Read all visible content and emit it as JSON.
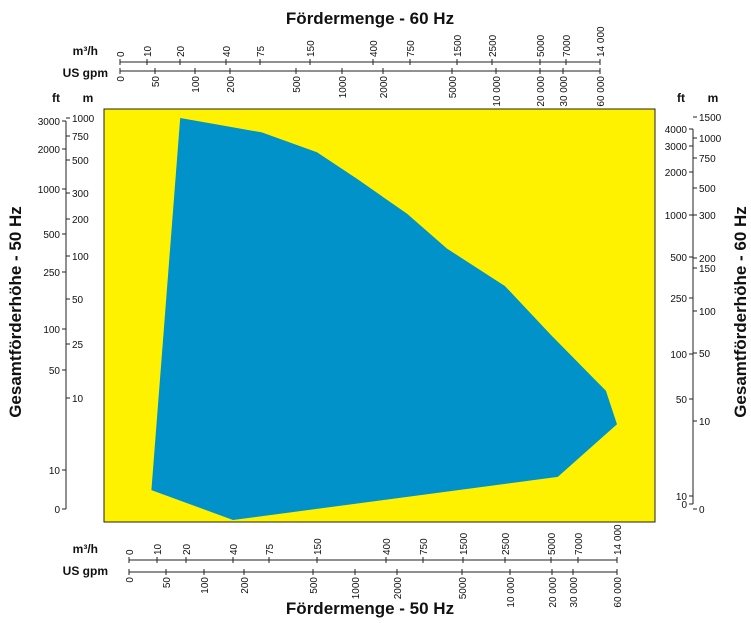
{
  "chart_data": {
    "type": "area",
    "colors": {
      "region": "#0092C8",
      "plot_background": "#FFF200",
      "axis": "#222222"
    },
    "titles": {
      "top": "Fördermenge - 60 Hz",
      "bottom": "Fördermenge - 50 Hz",
      "left": "Gesamtförderhöhe - 50 Hz",
      "right": "Gesamtförderhöhe - 60 Hz"
    },
    "top_axis": {
      "unit_primary": "m³/h",
      "unit_secondary": "US gpm",
      "ticks_primary": [
        "0",
        "10",
        "20",
        "40",
        "75",
        "150",
        "400",
        "750",
        "1500",
        "2500",
        "5000",
        "7000",
        "14 000"
      ],
      "ticks_secondary": [
        "0",
        "50",
        "100",
        "200",
        "500",
        "1000",
        "2000",
        "5000",
        "10 000",
        "20 000",
        "30 000",
        "60 000"
      ]
    },
    "bottom_axis": {
      "unit_primary": "m³/h",
      "unit_secondary": "US gpm",
      "ticks_primary": [
        "0",
        "10",
        "20",
        "40",
        "75",
        "150",
        "400",
        "750",
        "1500",
        "2500",
        "5000",
        "7000",
        "14 000"
      ],
      "ticks_secondary": [
        "0",
        "50",
        "100",
        "200",
        "500",
        "1000",
        "2000",
        "5000",
        "10 000",
        "20 000",
        "30 000",
        "60 000"
      ]
    },
    "left_axis": {
      "unit_ft": "ft",
      "unit_m": "m",
      "ticks_ft": [
        "0",
        "10",
        "50",
        "100",
        "250",
        "500",
        "1000",
        "2000",
        "3000"
      ],
      "ticks_m": [
        "10",
        "25",
        "50",
        "100",
        "200",
        "300",
        "500",
        "750",
        "1000"
      ]
    },
    "right_axis": {
      "unit_ft": "ft",
      "unit_m": "m",
      "ticks_ft": [
        "0",
        "10",
        "50",
        "100",
        "250",
        "500",
        "1000",
        "2000",
        "3000",
        "4000"
      ],
      "ticks_m": [
        "0",
        "10",
        "50",
        "100",
        "150",
        "200",
        "300",
        "500",
        "750",
        "1000",
        "1500"
      ]
    },
    "region_outline_m3h_vs_m": [
      [
        18,
        1000
      ],
      [
        68,
        800
      ],
      [
        150,
        580
      ],
      [
        300,
        380
      ],
      [
        600,
        220
      ],
      [
        1200,
        120
      ],
      [
        2500,
        65
      ],
      [
        5000,
        30
      ],
      [
        12000,
        12
      ],
      [
        14000,
        8
      ],
      [
        5500,
        4
      ],
      [
        40,
        0.5
      ],
      [
        8,
        3
      ]
    ]
  }
}
